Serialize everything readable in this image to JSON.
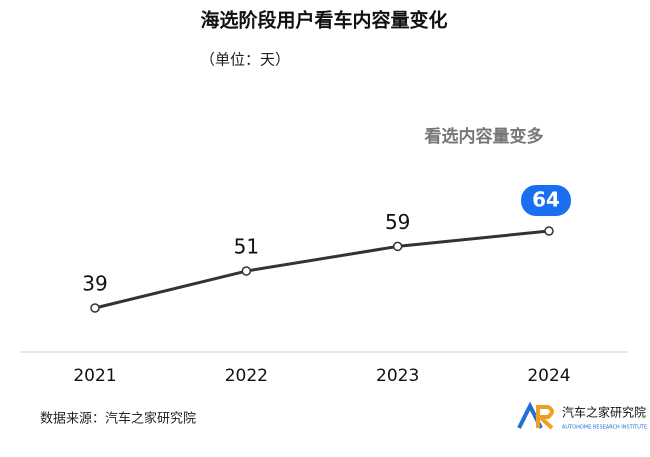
{
  "chart_data": {
    "type": "line",
    "title": "海选阶段用户看车内容量变化",
    "subtitle": "（单位：天）",
    "annotation": "看选内容量变多",
    "categories": [
      "2021",
      "2022",
      "2023",
      "2024"
    ],
    "values": [
      39,
      51,
      59,
      64
    ],
    "color": "#333333",
    "source": "数据来源：汽车之家研究院",
    "logo": {
      "name": "汽车之家研究院",
      "tagline": "AUTOHOME RESEARCH INSTITUTE"
    }
  }
}
